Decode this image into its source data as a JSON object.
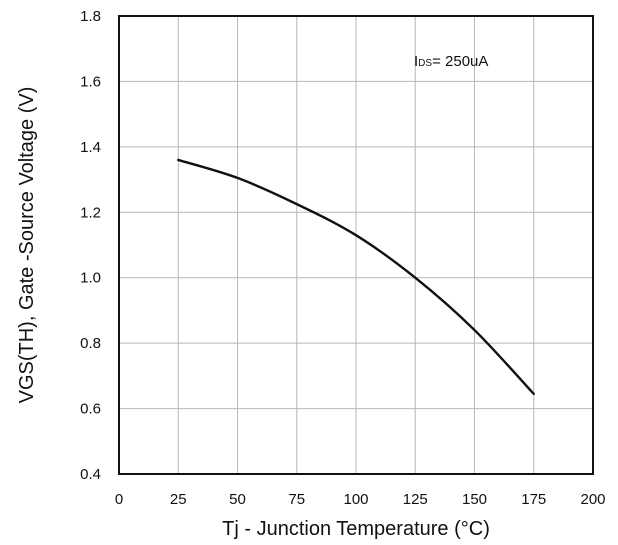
{
  "chart_data": {
    "type": "line",
    "title": "",
    "xlabel": "Tj - Junction Temperature (°C)",
    "ylabel": "VGS(TH), Gate -Source Voltage (V)",
    "xlim": [
      0,
      200
    ],
    "ylim": [
      0.4,
      1.8
    ],
    "xticks": [
      "0",
      "25",
      "50",
      "75",
      "100",
      "125",
      "150",
      "175",
      "200"
    ],
    "yticks": [
      "0.4",
      "0.6",
      "0.8",
      "1.0",
      "1.2",
      "1.4",
      "1.6",
      "1.8"
    ],
    "grid": true,
    "annotation": "IDS= 250uA",
    "series": [
      {
        "x": [
          25,
          50,
          75,
          100,
          125,
          150,
          175
        ],
        "y": [
          1.36,
          1.305,
          1.225,
          1.13,
          1.0,
          0.84,
          0.645
        ]
      }
    ]
  },
  "colors": {
    "line": "#111111",
    "grid": "#b8b8b8",
    "axis": "#111111",
    "text": "#111111"
  }
}
